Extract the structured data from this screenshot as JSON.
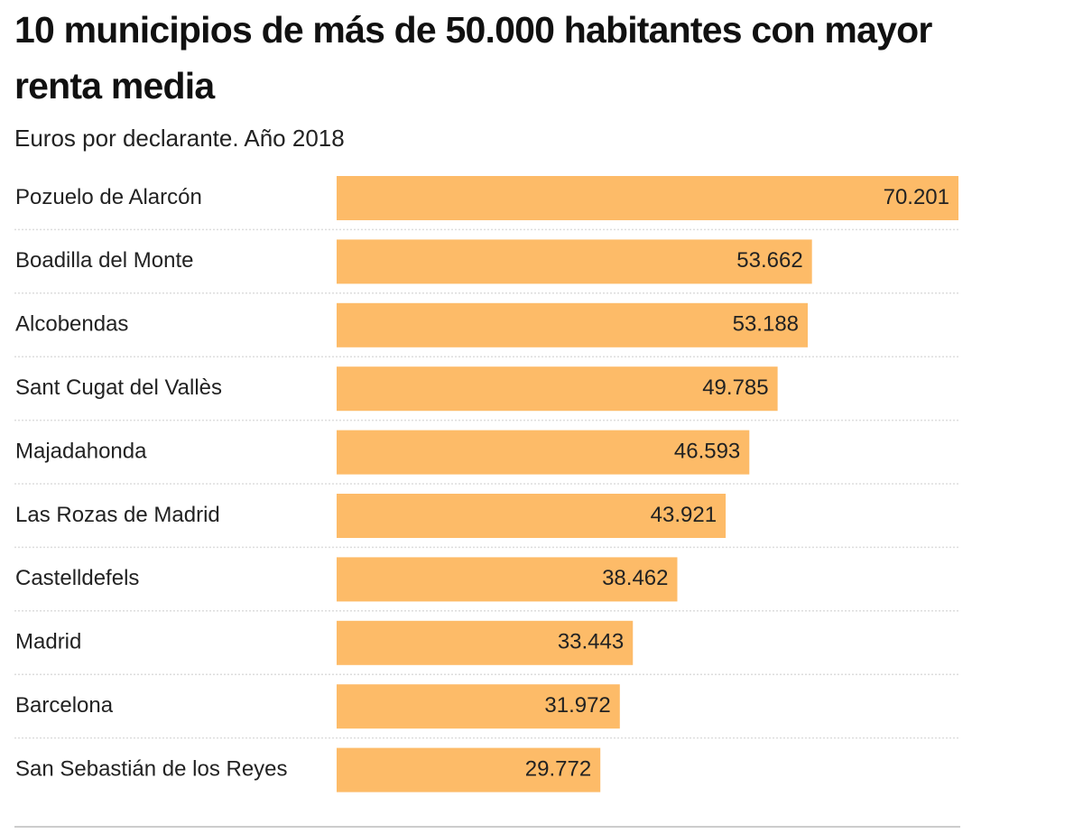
{
  "chart_data": {
    "type": "bar",
    "orientation": "horizontal",
    "title": "10 municipios de más de 50.000 habitantes con mayor renta media",
    "subtitle": "Euros por declarante. Año 2018",
    "categories": [
      "Pozuelo de Alarcón",
      "Boadilla del Monte",
      "Alcobendas",
      "Sant Cugat del Vallès",
      "Majadahonda",
      "Las Rozas de Madrid",
      "Castelldefels",
      "Madrid",
      "Barcelona",
      "San Sebastián de los Reyes"
    ],
    "values": [
      70201,
      53662,
      53188,
      49785,
      46593,
      43921,
      38462,
      33443,
      31972,
      29772
    ],
    "value_labels": [
      "70.201",
      "53.662",
      "53.188",
      "49.785",
      "46.593",
      "43.921",
      "38.462",
      "33.443",
      "31.972",
      "29.772"
    ],
    "color": "#fdbb68"
  }
}
